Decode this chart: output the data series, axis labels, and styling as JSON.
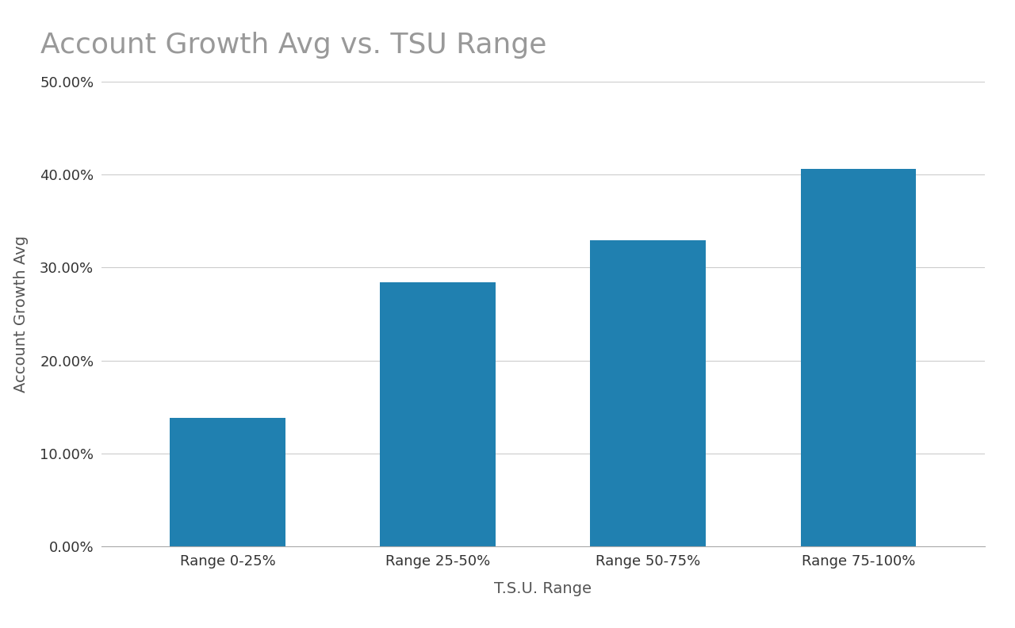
{
  "title": "Account Growth Avg vs. TSU Range",
  "xlabel": "T.S.U. Range",
  "ylabel": "Account Growth Avg",
  "categories": [
    "Range 0-25%",
    "Range 25-50%",
    "Range 50-75%",
    "Range 75-100%"
  ],
  "values": [
    0.138,
    0.284,
    0.329,
    0.406
  ],
  "bar_color": "#2080b0",
  "background_color": "#ffffff",
  "ylim": [
    0,
    0.5
  ],
  "yticks": [
    0.0,
    0.1,
    0.2,
    0.3,
    0.4,
    0.5
  ],
  "title_fontsize": 26,
  "axis_label_fontsize": 14,
  "tick_fontsize": 13,
  "title_color": "#999999",
  "axis_label_color": "#555555",
  "tick_color": "#333333",
  "grid_color": "#cccccc",
  "bar_width": 0.55
}
